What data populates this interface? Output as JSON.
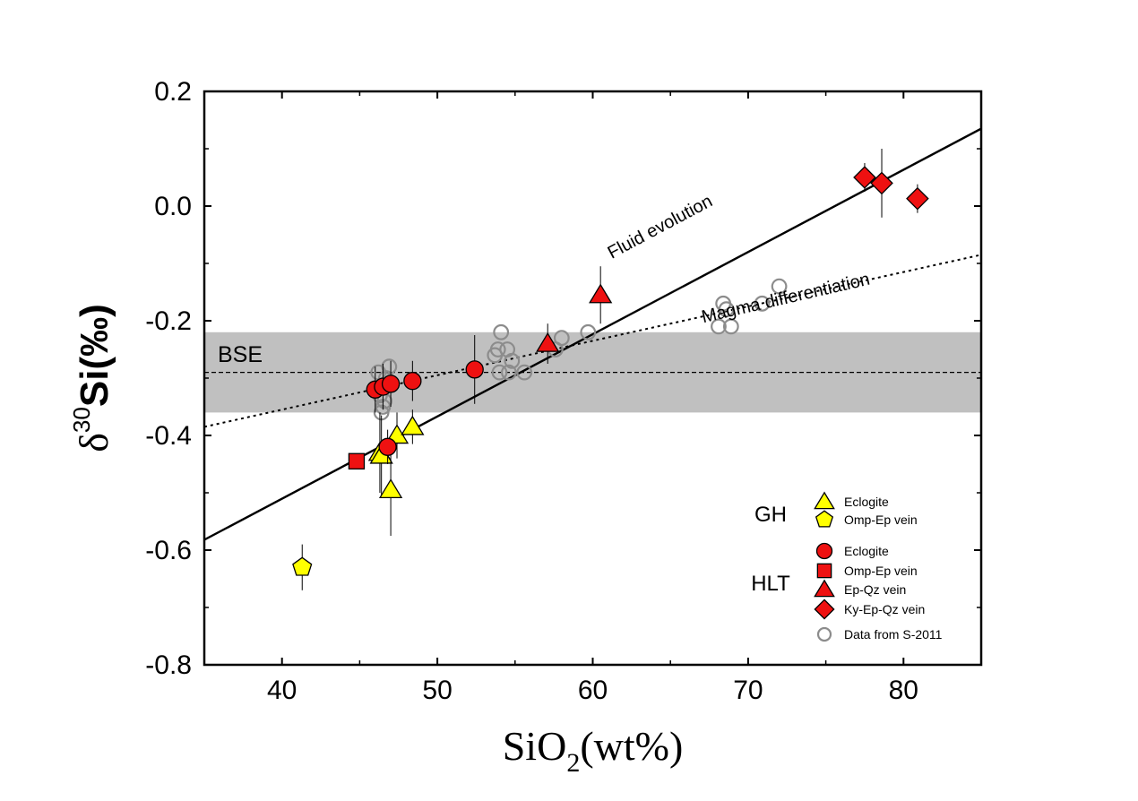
{
  "chart_data": {
    "type": "scatter",
    "xlabel_main": "SiO",
    "xlabel_sub": "2",
    "xlabel_rest": "(wt%)",
    "ylabel_delta": "δ",
    "ylabel_sup": "30",
    "ylabel_rest": "Si(‰)",
    "xlim": [
      35,
      85
    ],
    "ylim": [
      -0.8,
      0.2
    ],
    "xticks": [
      40,
      50,
      60,
      70,
      80
    ],
    "yticks": [
      -0.8,
      -0.6,
      -0.4,
      -0.2,
      0.0,
      0.2
    ],
    "xtick_labels": [
      "40",
      "50",
      "60",
      "70",
      "80"
    ],
    "ytick_labels": [
      "-0.8",
      "-0.6",
      "-0.4",
      "-0.2",
      "0.0",
      "0.2"
    ],
    "bse_band": {
      "label": "BSE",
      "ymin": -0.36,
      "ymax": -0.22,
      "mean": -0.29,
      "color": "#c0c0c0"
    },
    "lines": [
      {
        "name": "Fluid evolution",
        "style": "solid",
        "x": [
          35,
          85
        ],
        "y": [
          -0.582,
          0.135
        ],
        "label_x": 64.5,
        "label_y": -0.045,
        "label_angle": -28
      },
      {
        "name": "Magma differentiation",
        "style": "dotted",
        "x": [
          35,
          85
        ],
        "y": [
          -0.385,
          -0.085
        ],
        "label_x": 72.5,
        "label_y": -0.17,
        "label_angle": -13
      }
    ],
    "series": [
      {
        "name": "Eclogite",
        "group": "GH",
        "marker": "triangle",
        "color": "#ffff00",
        "points": [
          {
            "x": 46.3,
            "y": -0.43,
            "err": 0.07
          },
          {
            "x": 46.4,
            "y": -0.435,
            "err": 0.07
          },
          {
            "x": 47.0,
            "y": -0.495,
            "err": 0.08
          },
          {
            "x": 47.4,
            "y": -0.4,
            "err": 0.04
          },
          {
            "x": 48.4,
            "y": -0.385,
            "err": 0.03
          }
        ]
      },
      {
        "name": "Omp-Ep vein",
        "group": "GH",
        "marker": "pentagon",
        "color": "#ffff00",
        "points": [
          {
            "x": 41.3,
            "y": -0.63,
            "err": 0.04
          }
        ]
      },
      {
        "name": "Eclogite",
        "group": "HLT",
        "marker": "circle",
        "color": "#ee1111",
        "points": [
          {
            "x": 46.0,
            "y": -0.32,
            "err": 0.04
          },
          {
            "x": 46.5,
            "y": -0.315,
            "err": 0.04
          },
          {
            "x": 47.0,
            "y": -0.31,
            "err": 0.04
          },
          {
            "x": 48.4,
            "y": -0.305,
            "err": 0.035
          },
          {
            "x": 52.4,
            "y": -0.285,
            "err": 0.06
          },
          {
            "x": 46.8,
            "y": -0.42,
            "err": 0.03
          }
        ]
      },
      {
        "name": "Omp-Ep vein",
        "group": "HLT",
        "marker": "square",
        "color": "#ee1111",
        "points": [
          {
            "x": 44.8,
            "y": -0.445,
            "err": 0.0
          }
        ]
      },
      {
        "name": "Ep-Qz vein",
        "group": "HLT",
        "marker": "triangle",
        "color": "#ee1111",
        "points": [
          {
            "x": 57.1,
            "y": -0.24,
            "err": 0.035
          },
          {
            "x": 60.5,
            "y": -0.155,
            "err": 0.05
          }
        ]
      },
      {
        "name": "Ky-Ep-Qz vein",
        "group": "HLT",
        "marker": "diamond",
        "color": "#ee1111",
        "points": [
          {
            "x": 77.5,
            "y": 0.05,
            "err": 0.025
          },
          {
            "x": 78.6,
            "y": 0.04,
            "err": 0.06
          },
          {
            "x": 80.9,
            "y": 0.013,
            "err": 0.025
          }
        ]
      },
      {
        "name": "Data from S-2011",
        "group": "",
        "marker": "open-circle",
        "color": "#8c8c8c",
        "points": [
          {
            "x": 46.3,
            "y": -0.33
          },
          {
            "x": 46.5,
            "y": -0.35
          },
          {
            "x": 46.4,
            "y": -0.36
          },
          {
            "x": 46.7,
            "y": -0.3
          },
          {
            "x": 46.9,
            "y": -0.28
          },
          {
            "x": 47.0,
            "y": -0.31
          },
          {
            "x": 46.6,
            "y": -0.34
          },
          {
            "x": 46.2,
            "y": -0.29
          },
          {
            "x": 53.7,
            "y": -0.26
          },
          {
            "x": 53.9,
            "y": -0.25
          },
          {
            "x": 54.1,
            "y": -0.22
          },
          {
            "x": 54.5,
            "y": -0.25
          },
          {
            "x": 54.8,
            "y": -0.27
          },
          {
            "x": 54.0,
            "y": -0.29
          },
          {
            "x": 54.6,
            "y": -0.29
          },
          {
            "x": 55.6,
            "y": -0.29
          },
          {
            "x": 57.6,
            "y": -0.25
          },
          {
            "x": 58.0,
            "y": -0.23
          },
          {
            "x": 59.7,
            "y": -0.22
          },
          {
            "x": 68.1,
            "y": -0.21
          },
          {
            "x": 68.4,
            "y": -0.17
          },
          {
            "x": 68.6,
            "y": -0.18
          },
          {
            "x": 68.9,
            "y": -0.21
          },
          {
            "x": 70.9,
            "y": -0.17
          },
          {
            "x": 72.0,
            "y": -0.14
          }
        ]
      }
    ],
    "legend": {
      "placement": "bottom-right",
      "groups": [
        {
          "label": "GH",
          "items": [
            {
              "marker": "triangle",
              "color": "#ffff00",
              "label": "Eclogite"
            },
            {
              "marker": "pentagon",
              "color": "#ffff00",
              "label": "Omp-Ep vein"
            }
          ]
        },
        {
          "label": "HLT",
          "items": [
            {
              "marker": "circle",
              "color": "#ee1111",
              "label": "Eclogite"
            },
            {
              "marker": "square",
              "color": "#ee1111",
              "label": "Omp-Ep vein"
            },
            {
              "marker": "triangle",
              "color": "#ee1111",
              "label": "Ep-Qz vein"
            },
            {
              "marker": "diamond",
              "color": "#ee1111",
              "label": "Ky-Ep-Qz vein"
            }
          ]
        },
        {
          "label": "",
          "items": [
            {
              "marker": "open-circle",
              "color": "#8c8c8c",
              "label": "Data from S-2011"
            }
          ]
        }
      ]
    },
    "grid": false
  }
}
